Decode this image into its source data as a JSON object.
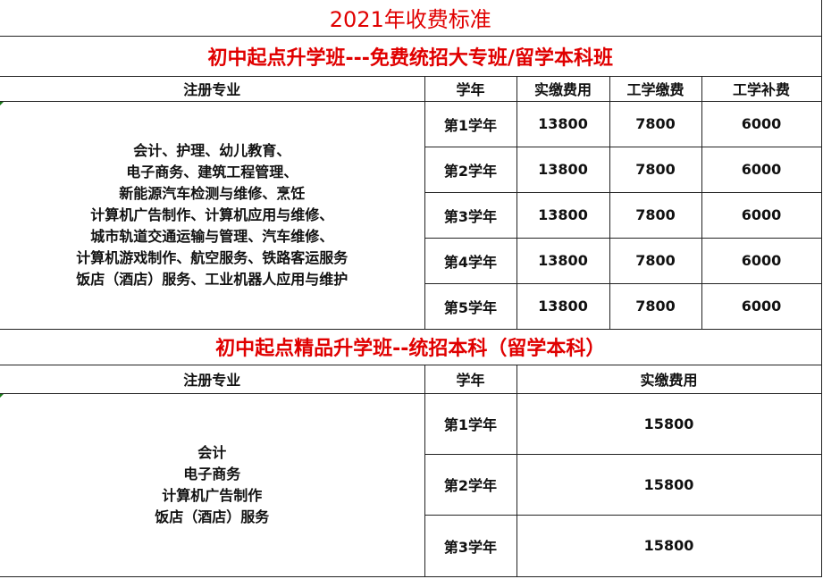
{
  "title": "2021年收费标准",
  "section1": {
    "heading": "初中起点升学班---免费统招大专班/留学本科班",
    "headers": [
      "注册专业",
      "学年",
      "实缴费用",
      "工学缴费",
      "工学补费"
    ],
    "majors": [
      "会计、护理、幼儿教育、",
      "电子商务、建筑工程管理、",
      "新能源汽车检测与维修、烹饪",
      "计算机广告制作、计算机应用与维修、",
      "城市轨道交通运输与管理、汽车维修、",
      "计算机游戏制作、航空服务、铁路客运服务",
      "饭店（酒店）服务、工业机器人应用与维护"
    ],
    "rows": [
      {
        "year": "第1学年",
        "fee": "13800",
        "work_fee": "7800",
        "subsidy": "6000"
      },
      {
        "year": "第2学年",
        "fee": "13800",
        "work_fee": "7800",
        "subsidy": "6000"
      },
      {
        "year": "第3学年",
        "fee": "13800",
        "work_fee": "7800",
        "subsidy": "6000"
      },
      {
        "year": "第4学年",
        "fee": "13800",
        "work_fee": "7800",
        "subsidy": "6000"
      },
      {
        "year": "第5学年",
        "fee": "13800",
        "work_fee": "7800",
        "subsidy": "6000"
      }
    ]
  },
  "section2": {
    "heading": "初中起点精品升学班--统招本科（留学本科）",
    "headers": [
      "注册专业",
      "学年",
      "实缴费用"
    ],
    "majors": [
      "会计",
      "电子商务",
      "计算机广告制作",
      "饭店（酒店）服务"
    ],
    "rows": [
      {
        "year": "第1学年",
        "fee": "15800"
      },
      {
        "year": "第2学年",
        "fee": "15800"
      },
      {
        "year": "第3学年",
        "fee": "15800"
      }
    ]
  }
}
